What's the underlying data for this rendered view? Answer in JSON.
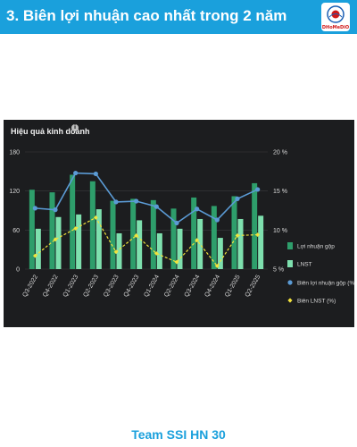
{
  "header": {
    "title": "3. Biên lợi nhuận cao nhất trong 2 năm"
  },
  "logo": {
    "text": "DHoMeDiO"
  },
  "footer": {
    "text": "Team SSI HN 30"
  },
  "colors": {
    "header_bg": "#1aa0dc",
    "panel_bg": "#1c1d1f",
    "bar_profit": "#2e9e6b",
    "bar_lnst": "#7ee0ae",
    "line_gross_margin": "#5b9bd5",
    "line_net_margin": "#f2e23c"
  },
  "chart_data": {
    "type": "bar",
    "title": "Hiệu quả kinh doanh",
    "categories": [
      "Q3-2022",
      "Q4-2022",
      "Q1-2023",
      "Q2-2023",
      "Q3-2023",
      "Q4-2023",
      "Q1-2024",
      "Q2-2024",
      "Q3-2024",
      "Q4-2024",
      "Q1-2025",
      "Q2-2025"
    ],
    "y_left": {
      "ticks": [
        "180",
        "120",
        "60",
        "0"
      ],
      "min": 0,
      "max": 180
    },
    "y_right": {
      "ticks": [
        "20 %",
        "15 %",
        "10 %",
        "5 %"
      ],
      "min": 5,
      "max": 20
    },
    "series": [
      {
        "name": "Lợi nhuận gộp",
        "kind": "bar",
        "axis": "left",
        "color": "#2e9e6b",
        "values": [
          122,
          118,
          145,
          135,
          105,
          108,
          106,
          93,
          110,
          97,
          112,
          132
        ]
      },
      {
        "name": "LNST",
        "kind": "bar",
        "axis": "left",
        "color": "#7ee0ae",
        "values": [
          62,
          80,
          84,
          92,
          55,
          75,
          55,
          62,
          77,
          48,
          77,
          82
        ]
      },
      {
        "name": "Biên lợi nhuận gộp (%)",
        "kind": "line",
        "axis": "right",
        "color": "#5b9bd5",
        "values": [
          12.8,
          12.6,
          17.3,
          17.2,
          13.6,
          13.7,
          13.0,
          10.9,
          12.7,
          11.3,
          14.0,
          15.2
        ]
      },
      {
        "name": "Biên LNST (%)",
        "kind": "line",
        "axis": "right",
        "color": "#f2e23c",
        "values": [
          6.7,
          8.8,
          10.2,
          11.6,
          7.2,
          9.3,
          7.0,
          5.9,
          8.7,
          5.4,
          9.3,
          9.4
        ]
      }
    ],
    "grid": true,
    "legend_position": "right"
  }
}
